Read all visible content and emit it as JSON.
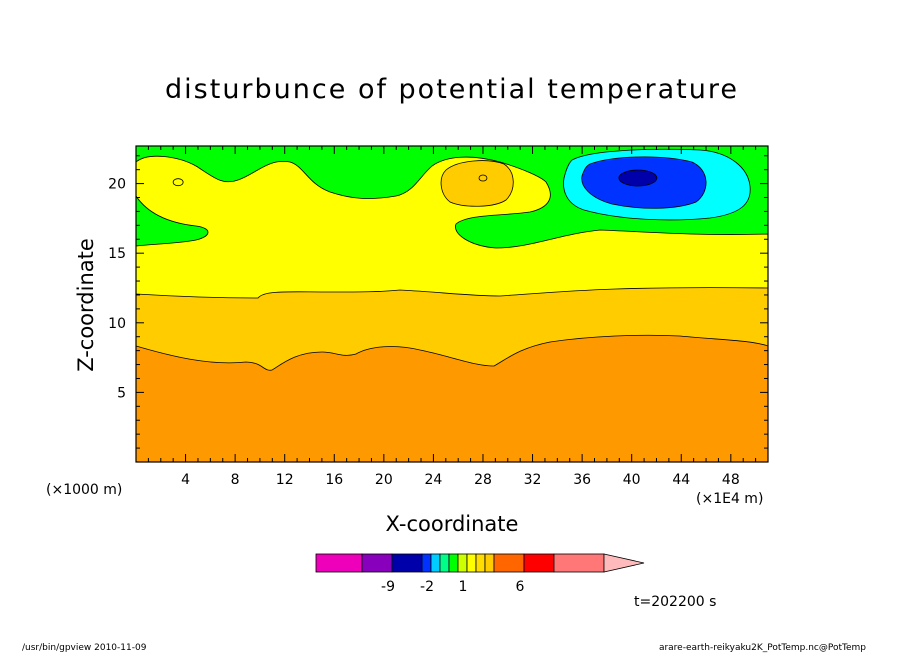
{
  "chart_data": {
    "type": "heatmap",
    "title": "disturbunce of potential temperature",
    "xlabel": "X-coordinate",
    "ylabel": "Z-coordinate",
    "x_unit_left": "(×1000 m)",
    "x_unit_right": "(×1E4 m)",
    "x_ticks": [
      4,
      8,
      12,
      16,
      20,
      24,
      28,
      32,
      36,
      40,
      44,
      48
    ],
    "y_ticks": [
      5,
      10,
      15,
      20
    ],
    "xlim": [
      0,
      51
    ],
    "ylim": [
      0,
      22.7
    ],
    "colorbar": {
      "colors": [
        "#ee00bb",
        "#8800bb",
        "#0000aa",
        "#0033ff",
        "#00ccff",
        "#00ff88",
        "#00ff00",
        "#ccff00",
        "#ffff00",
        "#ffdd00",
        "#ffcc00",
        "#ff6600",
        "#ff0000",
        "#ff7777",
        "#ffbbbb"
      ],
      "tick_labels": [
        "-9",
        "-2",
        "1",
        "6"
      ]
    },
    "regions": [
      {
        "name": "band-low",
        "color": "#ff9900",
        "z_range": [
          0,
          8.0
        ]
      },
      {
        "name": "band-mid",
        "color": "#ffcc00",
        "z_range": [
          8.0,
          12.3
        ]
      },
      {
        "name": "band-upper",
        "color": "#ffff00",
        "z_range": [
          12.3,
          16.0
        ]
      },
      {
        "name": "green-top",
        "color": "#00ff00",
        "z_range": [
          16.0,
          22.7
        ]
      },
      {
        "name": "warm-cell-28",
        "color": "#ffcc00",
        "center": [
          28,
          20.5
        ]
      },
      {
        "name": "cold-cell-outer",
        "color": "#00ffff",
        "center": [
          40.5,
          20.3
        ]
      },
      {
        "name": "cold-cell-mid",
        "color": "#0033ff",
        "center": [
          40.5,
          20.4
        ]
      },
      {
        "name": "cold-cell-core",
        "color": "#0000aa",
        "center": [
          40.5,
          20.4
        ]
      }
    ]
  },
  "labels": {
    "time": "t=202200 s",
    "footer_left": "/usr/bin/gpview   2010-11-09",
    "footer_right": "arare-earth-reikyaku2K_PotTemp.nc@PotTemp"
  }
}
